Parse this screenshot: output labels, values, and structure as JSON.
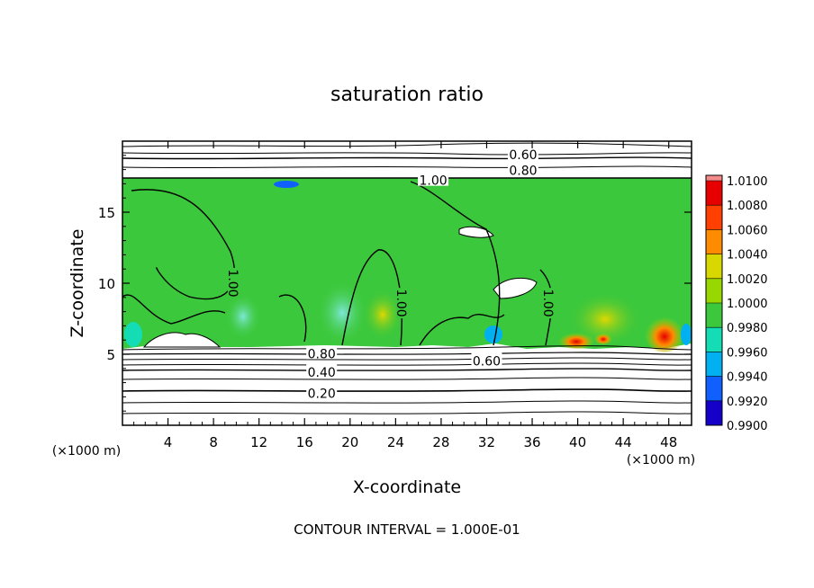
{
  "chart_data": {
    "type": "heatmap",
    "title": "saturation ratio",
    "xlabel": "X-coordinate",
    "ylabel": "Z-coordinate",
    "x_unit": "(×1000 m)",
    "y_unit": "(×1000 m)",
    "xlim": [
      0,
      50
    ],
    "ylim": [
      0,
      20
    ],
    "xticks": [
      4,
      8,
      12,
      16,
      20,
      24,
      28,
      32,
      36,
      40,
      44,
      48
    ],
    "yticks": [
      5,
      10,
      15
    ],
    "footer": "CONTOUR INTERVAL = 1.000E-01",
    "colorbar": {
      "labels": [
        "1.0100",
        "1.0080",
        "1.0060",
        "1.0040",
        "1.0020",
        "1.0000",
        "0.9980",
        "0.9960",
        "0.9940",
        "0.9920",
        "0.9900"
      ],
      "colors": [
        "#f48a8a",
        "#e60000",
        "#ff4000",
        "#ff8c00",
        "#d8d800",
        "#98d800",
        "#3cc83c",
        "#14dcb4",
        "#00b0f0",
        "#1060ff",
        "#1400c8",
        "#5a0096"
      ]
    },
    "contour_labels": [
      {
        "text": "0.60",
        "x": 35.2,
        "y": 19.1
      },
      {
        "text": "0.80",
        "x": 35.2,
        "y": 18.0
      },
      {
        "text": "1.00",
        "x": 27.3,
        "y": 17.3
      },
      {
        "text": "1.00",
        "x": 9.8,
        "y": 10.0
      },
      {
        "text": "1.00",
        "x": 24.6,
        "y": 8.6
      },
      {
        "text": "1.00",
        "x": 37.5,
        "y": 8.6
      },
      {
        "text": "0.80",
        "x": 17.5,
        "y": 5.1
      },
      {
        "text": "0.60",
        "x": 32.0,
        "y": 4.6
      },
      {
        "text": "0.40",
        "x": 17.5,
        "y": 3.8
      },
      {
        "text": "0.20",
        "x": 17.5,
        "y": 2.3
      }
    ]
  }
}
